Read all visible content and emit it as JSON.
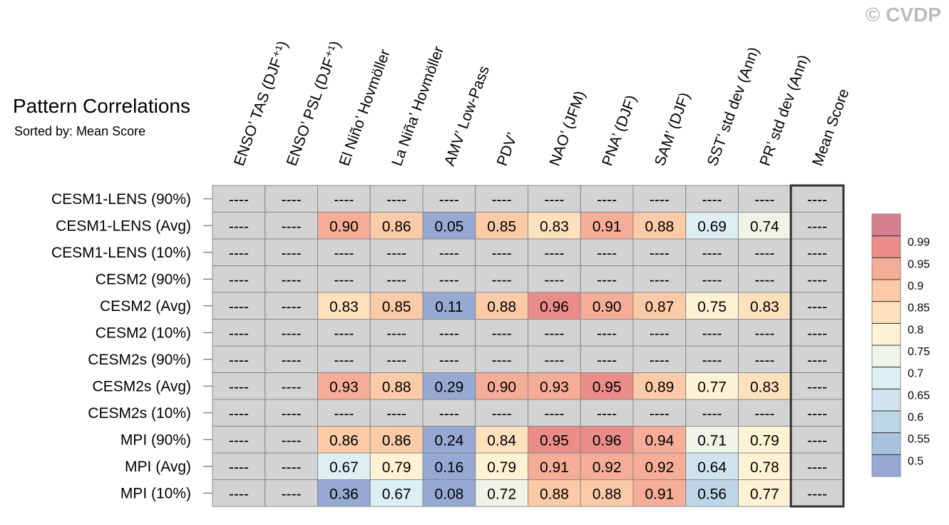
{
  "chart_data": {
    "type": "heatmap",
    "title": "Pattern Correlations",
    "subtitle": "Sorted by: Mean Score",
    "watermark": "© CVDP",
    "columns": [
      "ENSO’ TAS (DJF⁺¹)",
      "ENSO’ PSL (DJF⁺¹)",
      "El Niño’ Hovmöller",
      "La Niña’ Hovmöller",
      "AMV’ Low-Pass",
      "PDV’",
      "NAO’ (JFM)",
      "PNA’ (DJF)",
      "SAM’ (DJF)",
      "SST’ std dev (Ann)",
      "PR’ std dev (Ann)",
      "Mean Score"
    ],
    "rows": [
      "CESM1-LENS (90%)",
      "CESM1-LENS (Avg)",
      "CESM1-LENS (10%)",
      "CESM2 (90%)",
      "CESM2 (Avg)",
      "CESM2 (10%)",
      "CESM2s (90%)",
      "CESM2s (Avg)",
      "CESM2s (10%)",
      "MPI (90%)",
      "MPI (Avg)",
      "MPI (10%)"
    ],
    "values": [
      [
        null,
        null,
        null,
        null,
        null,
        null,
        null,
        null,
        null,
        null,
        null,
        null
      ],
      [
        null,
        null,
        0.9,
        0.86,
        0.05,
        0.85,
        0.83,
        0.91,
        0.88,
        0.69,
        0.74,
        null
      ],
      [
        null,
        null,
        null,
        null,
        null,
        null,
        null,
        null,
        null,
        null,
        null,
        null
      ],
      [
        null,
        null,
        null,
        null,
        null,
        null,
        null,
        null,
        null,
        null,
        null,
        null
      ],
      [
        null,
        null,
        0.83,
        0.85,
        0.11,
        0.88,
        0.96,
        0.9,
        0.87,
        0.75,
        0.83,
        null
      ],
      [
        null,
        null,
        null,
        null,
        null,
        null,
        null,
        null,
        null,
        null,
        null,
        null
      ],
      [
        null,
        null,
        null,
        null,
        null,
        null,
        null,
        null,
        null,
        null,
        null,
        null
      ],
      [
        null,
        null,
        0.93,
        0.88,
        0.29,
        0.9,
        0.93,
        0.95,
        0.89,
        0.77,
        0.83,
        null
      ],
      [
        null,
        null,
        null,
        null,
        null,
        null,
        null,
        null,
        null,
        null,
        null,
        null
      ],
      [
        null,
        null,
        0.86,
        0.86,
        0.24,
        0.84,
        0.95,
        0.96,
        0.94,
        0.71,
        0.79,
        null
      ],
      [
        null,
        null,
        0.67,
        0.79,
        0.16,
        0.79,
        0.91,
        0.92,
        0.92,
        0.64,
        0.78,
        null
      ],
      [
        null,
        null,
        0.36,
        0.67,
        0.08,
        0.72,
        0.88,
        0.88,
        0.91,
        0.56,
        0.77,
        null
      ]
    ],
    "value_labels": [
      [
        "----",
        "----",
        "----",
        "----",
        "----",
        "----",
        "----",
        "----",
        "----",
        "----",
        "----",
        "----"
      ],
      [
        "----",
        "----",
        "0.90",
        "0.86",
        "0.05",
        "0.85",
        "0.83",
        "0.91",
        "0.88",
        "0.69",
        "0.74",
        "----"
      ],
      [
        "----",
        "----",
        "----",
        "----",
        "----",
        "----",
        "----",
        "----",
        "----",
        "----",
        "----",
        "----"
      ],
      [
        "----",
        "----",
        "----",
        "----",
        "----",
        "----",
        "----",
        "----",
        "----",
        "----",
        "----",
        "----"
      ],
      [
        "----",
        "----",
        "0.83",
        "0.85",
        "0.11",
        "0.88",
        "0.96",
        "0.90",
        "0.87",
        "0.75",
        "0.83",
        "----"
      ],
      [
        "----",
        "----",
        "----",
        "----",
        "----",
        "----",
        "----",
        "----",
        "----",
        "----",
        "----",
        "----"
      ],
      [
        "----",
        "----",
        "----",
        "----",
        "----",
        "----",
        "----",
        "----",
        "----",
        "----",
        "----",
        "----"
      ],
      [
        "----",
        "----",
        "0.93",
        "0.88",
        "0.29",
        "0.90",
        "0.93",
        "0.95",
        "0.89",
        "0.77",
        "0.83",
        "----"
      ],
      [
        "----",
        "----",
        "----",
        "----",
        "----",
        "----",
        "----",
        "----",
        "----",
        "----",
        "----",
        "----"
      ],
      [
        "----",
        "----",
        "0.86",
        "0.86",
        "0.24",
        "0.84",
        "0.95",
        "0.96",
        "0.94",
        "0.71",
        "0.79",
        "----"
      ],
      [
        "----",
        "----",
        "0.67",
        "0.79",
        "0.16",
        "0.79",
        "0.91",
        "0.92",
        "0.92",
        "0.64",
        "0.78",
        "----"
      ],
      [
        "----",
        "----",
        "0.36",
        "0.67",
        "0.08",
        "0.72",
        "0.88",
        "0.88",
        "0.91",
        "0.56",
        "0.77",
        "----"
      ]
    ],
    "missing_color": "#d3d3d3",
    "colorbar": {
      "ticks": [
        0.5,
        0.55,
        0.6,
        0.65,
        0.7,
        0.75,
        0.8,
        0.85,
        0.9,
        0.95,
        0.99
      ],
      "colors": [
        "#95a9d2",
        "#a9c2dd",
        "#bdd6e7",
        "#cfe4ef",
        "#deeff4",
        "#f0f4e8",
        "#fdf2d3",
        "#fde1bd",
        "#fbcaa7",
        "#f5ad97",
        "#ea8d88",
        "#d6808f"
      ]
    }
  }
}
